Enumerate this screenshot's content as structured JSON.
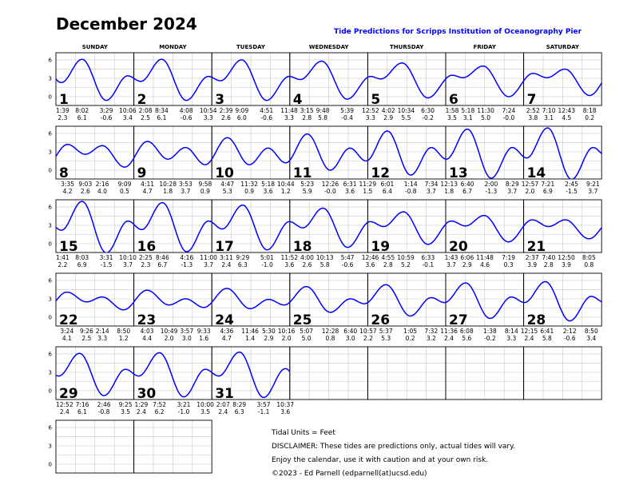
{
  "title": "December 2024",
  "subtitle": "Tide Predictions for Scripps Institution of Oceanography Pier",
  "colors": {
    "curve": "#0000ff",
    "subtitle": "#0000ff",
    "grid": "#c8c8c8"
  },
  "weekdays": [
    "SUNDAY",
    "MONDAY",
    "TUESDAY",
    "WEDNESDAY",
    "THURSDAY",
    "FRIDAY",
    "SATURDAY"
  ],
  "axis_labels": [
    "6",
    "3",
    "0"
  ],
  "days": [
    {
      "date": "1",
      "tides": [
        {
          "time": "1:39",
          "height": "2.3"
        },
        {
          "time": "8:02",
          "height": "6.1"
        },
        {
          "time": "3:29",
          "height": "-0.6"
        },
        {
          "time": "10:06",
          "height": "3.4"
        }
      ]
    },
    {
      "date": "2",
      "tides": [
        {
          "time": "2:08",
          "height": "2.5"
        },
        {
          "time": "8:34",
          "height": "6.1"
        },
        {
          "time": "4:08",
          "height": "-0.6"
        },
        {
          "time": "10:54",
          "height": "3.3"
        }
      ]
    },
    {
      "date": "3",
      "tides": [
        {
          "time": "2:39",
          "height": "2.6"
        },
        {
          "time": "9:09",
          "height": "6.0"
        },
        {
          "time": "4:51",
          "height": "-0.6"
        },
        {
          "time": "11:48",
          "height": "3.3"
        }
      ]
    },
    {
      "date": "4",
      "tides": [
        {
          "time": "3:15",
          "height": "2.8"
        },
        {
          "time": "9:48",
          "height": "5.8"
        },
        {
          "time": "5:39",
          "height": "-0.4"
        }
      ]
    },
    {
      "date": "5",
      "tides": [
        {
          "time": "12:52",
          "height": "3.3"
        },
        {
          "time": "4:02",
          "height": "2.9"
        },
        {
          "time": "10:34",
          "height": "5.5"
        },
        {
          "time": "6:30",
          "height": "-0.2"
        }
      ]
    },
    {
      "date": "6",
      "tides": [
        {
          "time": "1:58",
          "height": "3.5"
        },
        {
          "time": "5:18",
          "height": "3.1"
        },
        {
          "time": "11:30",
          "height": "5.0"
        },
        {
          "time": "7:24",
          "height": "-0.0"
        }
      ]
    },
    {
      "date": "7",
      "tides": [
        {
          "time": "2:52",
          "height": "3.8"
        },
        {
          "time": "7:10",
          "height": "3.1"
        },
        {
          "time": "12:43",
          "height": "4.5"
        },
        {
          "time": "8:18",
          "height": "0.2"
        }
      ]
    },
    {
      "date": "8",
      "tides": [
        {
          "time": "3:35",
          "height": "4.2"
        },
        {
          "time": "9:03",
          "height": "2.6"
        },
        {
          "time": "2:16",
          "height": "4.0"
        },
        {
          "time": "9:09",
          "height": "0.5"
        }
      ]
    },
    {
      "date": "9",
      "tides": [
        {
          "time": "4:11",
          "height": "4.7"
        },
        {
          "time": "10:28",
          "height": "1.8"
        },
        {
          "time": "3:53",
          "height": "3.7"
        },
        {
          "time": "9:58",
          "height": "0.9"
        }
      ]
    },
    {
      "date": "10",
      "tides": [
        {
          "time": "4:47",
          "height": "5.3"
        },
        {
          "time": "11:32",
          "height": "0.9"
        },
        {
          "time": "5:18",
          "height": "3.6"
        },
        {
          "time": "10:44",
          "height": "1.2"
        }
      ]
    },
    {
      "date": "11",
      "tides": [
        {
          "time": "5:23",
          "height": "5.9"
        },
        {
          "time": "12:26",
          "height": "-0.0"
        },
        {
          "time": "6:31",
          "height": "3.6"
        },
        {
          "time": "11:29",
          "height": "1.5"
        }
      ]
    },
    {
      "date": "12",
      "tides": [
        {
          "time": "6:01",
          "height": "6.4"
        },
        {
          "time": "1:14",
          "height": "-0.8"
        },
        {
          "time": "7:34",
          "height": "3.7"
        }
      ]
    },
    {
      "date": "13",
      "tides": [
        {
          "time": "12:13",
          "height": "1.8"
        },
        {
          "time": "6:40",
          "height": "6.7"
        },
        {
          "time": "2:00",
          "height": "-1.3"
        },
        {
          "time": "8:29",
          "height": "3.7"
        }
      ]
    },
    {
      "date": "14",
      "tides": [
        {
          "time": "12:57",
          "height": "2.0"
        },
        {
          "time": "7:21",
          "height": "6.9"
        },
        {
          "time": "2:45",
          "height": "-1.5"
        },
        {
          "time": "9:21",
          "height": "3.7"
        }
      ]
    },
    {
      "date": "15",
      "tides": [
        {
          "time": "1:41",
          "height": "2.2"
        },
        {
          "time": "8:03",
          "height": "6.9"
        },
        {
          "time": "3:31",
          "height": "-1.5"
        },
        {
          "time": "10:10",
          "height": "3.7"
        }
      ]
    },
    {
      "date": "16",
      "tides": [
        {
          "time": "2:25",
          "height": "2.3"
        },
        {
          "time": "8:46",
          "height": "6.7"
        },
        {
          "time": "4:16",
          "height": "-1.3"
        },
        {
          "time": "11:00",
          "height": "3.7"
        }
      ]
    },
    {
      "date": "17",
      "tides": [
        {
          "time": "3:11",
          "height": "2.4"
        },
        {
          "time": "9:29",
          "height": "6.3"
        },
        {
          "time": "5:01",
          "height": "-1.0"
        },
        {
          "time": "11:52",
          "height": "3.6"
        }
      ]
    },
    {
      "date": "18",
      "tides": [
        {
          "time": "4:00",
          "height": "2.6"
        },
        {
          "time": "10:13",
          "height": "5.8"
        },
        {
          "time": "5:47",
          "height": "-0.6"
        }
      ]
    },
    {
      "date": "19",
      "tides": [
        {
          "time": "12:46",
          "height": "3.6"
        },
        {
          "time": "4:55",
          "height": "2.8"
        },
        {
          "time": "10:59",
          "height": "5.2"
        },
        {
          "time": "6:33",
          "height": "-0.1"
        }
      ]
    },
    {
      "date": "20",
      "tides": [
        {
          "time": "1:43",
          "height": "3.7"
        },
        {
          "time": "6:06",
          "height": "2.9"
        },
        {
          "time": "11:48",
          "height": "4.6"
        },
        {
          "time": "7:19",
          "height": "0.3"
        }
      ]
    },
    {
      "date": "21",
      "tides": [
        {
          "time": "2:37",
          "height": "3.9"
        },
        {
          "time": "7:40",
          "height": "2.8"
        },
        {
          "time": "12:50",
          "height": "3.9"
        },
        {
          "time": "8:05",
          "height": "0.8"
        }
      ]
    },
    {
      "date": "22",
      "tides": [
        {
          "time": "3:24",
          "height": "4.1"
        },
        {
          "time": "9:26",
          "height": "2.5"
        },
        {
          "time": "2:14",
          "height": "3.3"
        },
        {
          "time": "8:50",
          "height": "1.2"
        }
      ]
    },
    {
      "date": "23",
      "tides": [
        {
          "time": "4:03",
          "height": "4.4"
        },
        {
          "time": "10:49",
          "height": "2.0"
        },
        {
          "time": "3:57",
          "height": "3.0"
        },
        {
          "time": "9:33",
          "height": "1.6"
        }
      ]
    },
    {
      "date": "24",
      "tides": [
        {
          "time": "4:36",
          "height": "4.7"
        },
        {
          "time": "11:46",
          "height": "1.4"
        },
        {
          "time": "5:30",
          "height": "2.9"
        },
        {
          "time": "10:16",
          "height": "2.0"
        }
      ]
    },
    {
      "date": "25",
      "tides": [
        {
          "time": "5:07",
          "height": "5.0"
        },
        {
          "time": "12:28",
          "height": "0.8"
        },
        {
          "time": "6:40",
          "height": "3.0"
        },
        {
          "time": "10:57",
          "height": "2.2"
        }
      ]
    },
    {
      "date": "26",
      "tides": [
        {
          "time": "5:37",
          "height": "5.3"
        },
        {
          "time": "1:05",
          "height": "0.2"
        },
        {
          "time": "7:32",
          "height": "3.2"
        },
        {
          "time": "11:36",
          "height": "2.4"
        }
      ]
    },
    {
      "date": "27",
      "tides": [
        {
          "time": "6:08",
          "height": "5.6"
        },
        {
          "time": "1:38",
          "height": "-0.2"
        },
        {
          "time": "8:14",
          "height": "3.3"
        }
      ]
    },
    {
      "date": "28",
      "tides": [
        {
          "time": "12:15",
          "height": "2.4"
        },
        {
          "time": "6:41",
          "height": "5.8"
        },
        {
          "time": "2:12",
          "height": "-0.6"
        },
        {
          "time": "8:50",
          "height": "3.4"
        }
      ]
    },
    {
      "date": "29",
      "tides": [
        {
          "time": "12:52",
          "height": "2.4"
        },
        {
          "time": "7:16",
          "height": "6.1"
        },
        {
          "time": "2:46",
          "height": "-0.8"
        },
        {
          "time": "9:25",
          "height": "3.5"
        }
      ]
    },
    {
      "date": "30",
      "tides": [
        {
          "time": "1:29",
          "height": "2.4"
        },
        {
          "time": "7:52",
          "height": "6.2"
        },
        {
          "time": "3:21",
          "height": "-1.0"
        },
        {
          "time": "10:00",
          "height": "3.5"
        }
      ]
    },
    {
      "date": "31",
      "tides": [
        {
          "time": "2:07",
          "height": "2.4"
        },
        {
          "time": "8:29",
          "height": "6.3"
        },
        {
          "time": "3:57",
          "height": "-1.1"
        },
        {
          "time": "10:37",
          "height": "3.6"
        }
      ]
    }
  ],
  "footer": {
    "units": "Tidal Units = Feet",
    "disclaimer": "DISCLAIMER: These tides are predictions only, actual tides will vary.",
    "enjoy": "Enjoy the calendar, use it with caution and at your own risk.",
    "copyright": "©2023 - Ed Parnell (edparnell(at)ucsd.edu)"
  }
}
